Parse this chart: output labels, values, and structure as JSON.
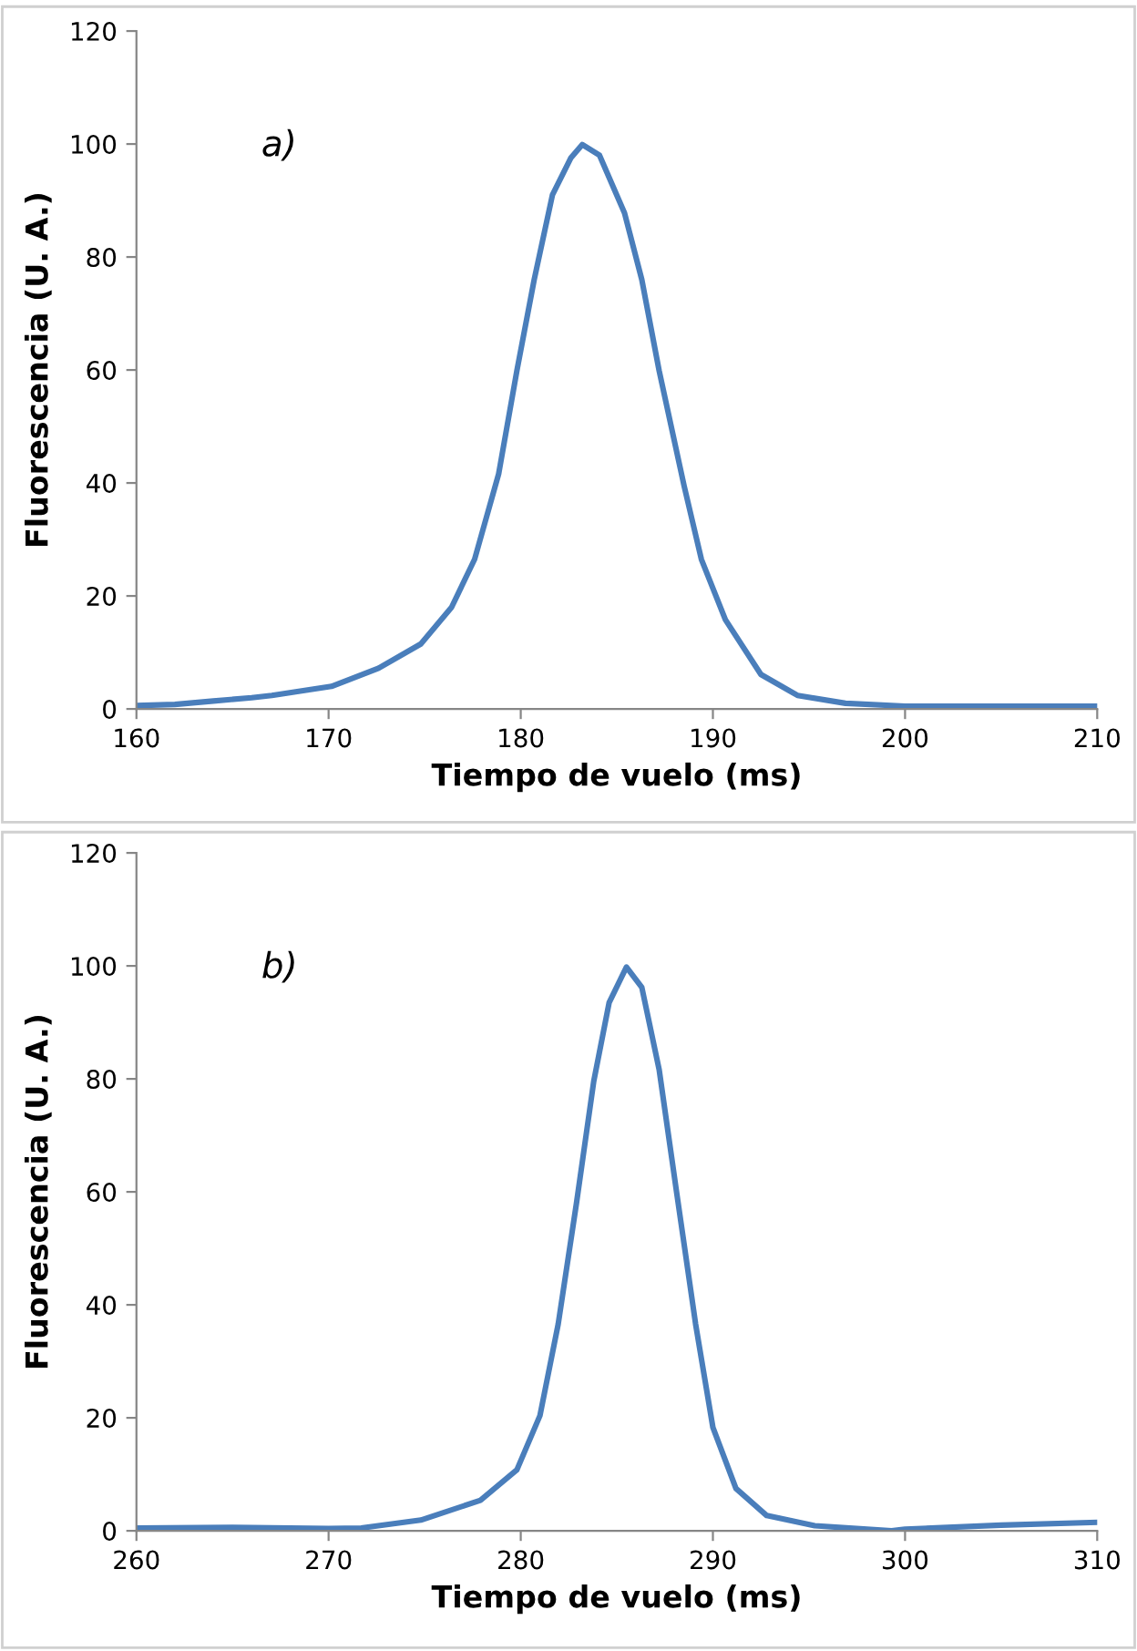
{
  "chart_data": [
    {
      "type": "line",
      "xlabel": "Tiempo de vuelo (ms)",
      "ylabel": "Fluorescencia (U. A.)",
      "annotations": [
        "a)"
      ],
      "xlim": [
        160,
        210
      ],
      "xticks": [
        160,
        170,
        180,
        190,
        200,
        210
      ],
      "ylim": [
        0,
        120
      ],
      "yticks": [
        0,
        20,
        40,
        60,
        80,
        100,
        120
      ],
      "grid": false,
      "legend": false,
      "marker": "none",
      "line_style": "solid",
      "series": [
        {
          "color": "#4a7ebb",
          "x": [
            160,
            162,
            164,
            166,
            167.05,
            170.15,
            172.6,
            174.8,
            176.4,
            177.6,
            178.85,
            179.8,
            180.7,
            181.65,
            182.6,
            183.2,
            184.1,
            185.4,
            186.3,
            187.2,
            188.5,
            189.4,
            190.65,
            192.5,
            194.4,
            196.9,
            200,
            205,
            210
          ],
          "values": [
            0.6,
            0.8,
            1.4,
            2,
            2.4,
            4.0,
            7.2,
            11.5,
            18,
            26.5,
            41.6,
            59.9,
            76,
            91,
            97.5,
            99.9,
            98,
            87.8,
            76,
            59.9,
            39.5,
            26.5,
            15.8,
            6.1,
            2.4,
            1.0,
            0.5,
            0.5,
            0.5
          ]
        }
      ]
    },
    {
      "type": "line",
      "xlabel": "Tiempo de vuelo (ms)",
      "ylabel": "Fluorescencia (U. A.)",
      "annotations": [
        "b)"
      ],
      "xlim": [
        260,
        310
      ],
      "xticks": [
        260,
        270,
        280,
        290,
        300,
        310
      ],
      "ylim": [
        0,
        120
      ],
      "yticks": [
        0,
        20,
        40,
        60,
        80,
        100,
        120
      ],
      "grid": false,
      "legend": false,
      "marker": "none",
      "line_style": "solid",
      "series": [
        {
          "color": "#4a7ebb",
          "x": [
            260,
            265,
            270,
            271.7,
            274.8,
            277.9,
            279.8,
            281.0,
            281.95,
            282.9,
            283.8,
            284.6,
            285.5,
            286.3,
            287.2,
            288.1,
            289.1,
            290.0,
            291.2,
            292.8,
            295.3,
            299.3,
            300,
            305,
            310
          ],
          "values": [
            0.5,
            0.6,
            0.4,
            0.5,
            1.9,
            5.4,
            10.8,
            20.4,
            36.6,
            58,
            79.6,
            93.5,
            99.8,
            96.2,
            81.7,
            60.2,
            36.6,
            18.3,
            7.5,
            2.7,
            0.9,
            0,
            0.3,
            1,
            1.5
          ]
        }
      ]
    }
  ]
}
